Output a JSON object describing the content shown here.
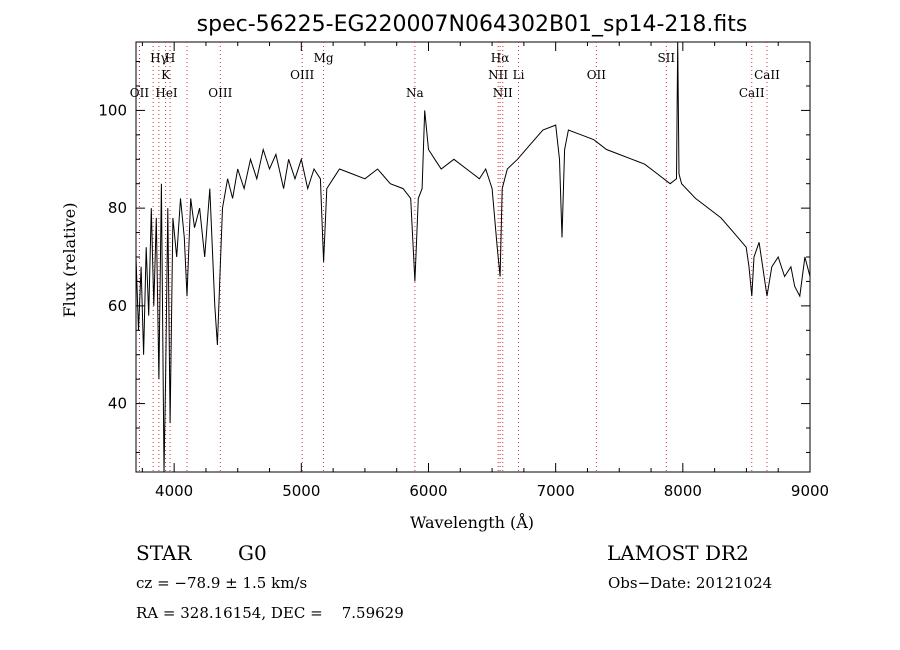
{
  "chart_data": {
    "type": "line",
    "title": "spec-56225-EG220007N064302B01_sp14-218.fits",
    "xlabel": "Wavelength (Å)",
    "ylabel": "Flux (relative)",
    "xlim": [
      3700,
      9000
    ],
    "ylim": [
      26,
      114
    ],
    "x_ticks": [
      4000,
      5000,
      6000,
      7000,
      8000,
      9000
    ],
    "y_ticks": [
      40,
      60,
      80,
      100
    ],
    "grid": false,
    "series": [
      {
        "x": [
          3700,
          3720,
          3740,
          3760,
          3780,
          3800,
          3820,
          3840,
          3860,
          3880,
          3900,
          3920,
          3933,
          3950,
          3968,
          3990,
          4020,
          4050,
          4080,
          4101,
          4130,
          4160,
          4200,
          4240,
          4280,
          4320,
          4340,
          4360,
          4380,
          4420,
          4460,
          4500,
          4550,
          4600,
          4650,
          4700,
          4750,
          4800,
          4861,
          4900,
          4950,
          5000,
          5050,
          5100,
          5150,
          5175,
          5200,
          5250,
          5300,
          5400,
          5500,
          5600,
          5700,
          5800,
          5860,
          5893,
          5920,
          5950,
          5970,
          6000,
          6050,
          6100,
          6200,
          6300,
          6400,
          6450,
          6500,
          6540,
          6563,
          6580,
          6620,
          6700,
          6800,
          6900,
          7000,
          7030,
          7050,
          7070,
          7100,
          7200,
          7300,
          7400,
          7500,
          7600,
          7700,
          7800,
          7900,
          7950,
          7960,
          7970,
          7990,
          8100,
          8200,
          8300,
          8400,
          8498,
          8520,
          8542,
          8560,
          8600,
          8662,
          8700,
          8750,
          8800,
          8850,
          8880,
          8920,
          8960,
          9000
        ],
        "y": [
          70,
          55,
          68,
          50,
          72,
          58,
          80,
          60,
          78,
          45,
          85,
          26,
          45,
          80,
          36,
          78,
          70,
          82,
          74,
          62,
          82,
          76,
          80,
          70,
          84,
          60,
          52,
          66,
          80,
          86,
          82,
          88,
          84,
          90,
          86,
          92,
          88,
          91,
          84,
          90,
          86,
          90,
          84,
          88,
          86,
          69,
          84,
          86,
          88,
          87,
          86,
          88,
          85,
          84,
          82,
          65,
          82,
          84,
          100,
          92,
          90,
          88,
          90,
          88,
          86,
          88,
          84,
          72,
          66,
          84,
          88,
          90,
          93,
          96,
          97,
          90,
          74,
          92,
          96,
          95,
          94,
          92,
          91,
          90,
          89,
          87,
          85,
          86,
          114,
          87,
          85,
          82,
          80,
          78,
          75,
          72,
          68,
          62,
          70,
          73,
          62,
          68,
          70,
          66,
          68,
          64,
          62,
          70,
          66
        ]
      }
    ],
    "line_annotations": [
      {
        "label": "Hγ",
        "wavelength": 3880,
        "row": 1
      },
      {
        "label": "H",
        "wavelength": 3968,
        "row": 1
      },
      {
        "label": "K",
        "wavelength": 3933,
        "row": 2
      },
      {
        "label": "OII",
        "wavelength": 3727,
        "row": 3
      },
      {
        "label": "HeI",
        "wavelength": 3940,
        "row": 3
      },
      {
        "label": "OIII",
        "wavelength": 4363,
        "row": 3
      },
      {
        "label": "Mg",
        "wavelength": 5175,
        "row": 1
      },
      {
        "label": "OIII",
        "wavelength": 5007,
        "row": 2
      },
      {
        "label": "Na",
        "wavelength": 5893,
        "row": 3
      },
      {
        "label": "Hα",
        "wavelength": 6563,
        "row": 1
      },
      {
        "label": "NII",
        "wavelength": 6548,
        "row": 2
      },
      {
        "label": "Li",
        "wavelength": 6708,
        "row": 2
      },
      {
        "label": "NII",
        "wavelength": 6584,
        "row": 3
      },
      {
        "label": "OII",
        "wavelength": 7320,
        "row": 2
      },
      {
        "label": "SII",
        "wavelength": 7870,
        "row": 1
      },
      {
        "label": "CaII",
        "wavelength": 8662,
        "row": 2
      },
      {
        "label": "CaII",
        "wavelength": 8542,
        "row": 3
      }
    ],
    "marker_lines": [
      3727,
      3835,
      3880,
      3933,
      3968,
      4101,
      4363,
      5007,
      5175,
      5893,
      6548,
      6563,
      6584,
      6708,
      7320,
      7870,
      8542,
      8662
    ],
    "colors": {
      "line": "#000000",
      "marker": "#cc3333"
    }
  },
  "footer": {
    "object_class": "STAR",
    "subclass": "G0",
    "survey": "LAMOST DR2",
    "redshift": "cz = −78.9 ± 1.5 km/s",
    "obs_date": "Obs−Date: 20121024",
    "coords": "RA = 328.16154, DEC =    7.59629"
  }
}
